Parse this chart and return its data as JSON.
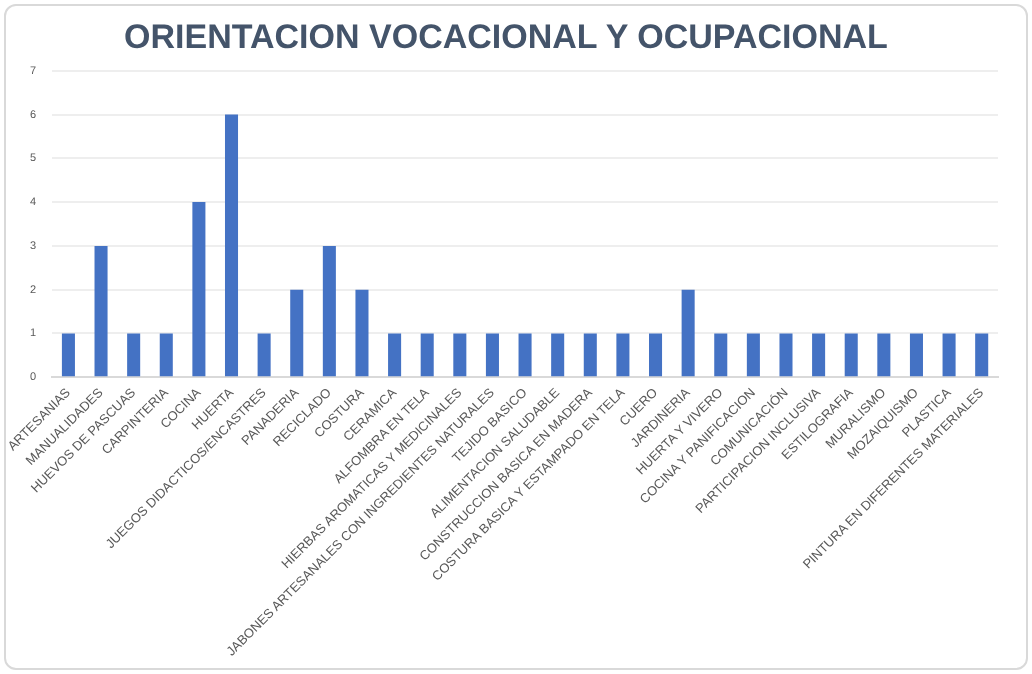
{
  "chart_data": {
    "type": "bar",
    "title": "ORIENTACION VOCACIONAL Y OCUPACIONAL",
    "categories": [
      "ARTESANIAS",
      "MANUALIDADES",
      "HUEVOS DE PASCUAS",
      "CARPINTERIA",
      "COCINA",
      "HUERTA",
      "JUEGOS DIDACTICOS/ENCASTRES",
      "PANADERIA",
      "RECICLADO",
      "COSTURA",
      "CERAMICA",
      "ALFOMBRA EN TELA",
      "HIERBAS AROMATICAS Y MEDICINALES",
      "JABONES ARTESANALES CON INGREDIENTES NATURALES",
      "TEJIDO BASICO",
      "ALIMENTACION SALUDABLE",
      "CONSTRUCCION BASICA EN MADERA",
      "COSTURA BASICA Y ESTAMPADO EN TELA",
      "CUERO",
      "JARDINERIA",
      "HUERTA Y VIVERO",
      "COCINA Y PANIFICACION",
      "COMUNICACIÓN",
      "PARTICIPACION INCLUSIVA",
      "ESTILOGRAFIA",
      "MURALISMO",
      "MOZAIQUISMO",
      "PLASTICA",
      "PINTURA EN DIFERENTES MATERIALES"
    ],
    "values": [
      1,
      3,
      1,
      1,
      4,
      6,
      1,
      2,
      3,
      2,
      1,
      1,
      1,
      1,
      1,
      1,
      1,
      1,
      1,
      2,
      1,
      1,
      1,
      1,
      1,
      1,
      1,
      1,
      1
    ],
    "color": "#4472c4",
    "ylim": [
      0,
      7
    ],
    "yticks": [
      0,
      1,
      2,
      3,
      4,
      5,
      6,
      7
    ],
    "grid": "y"
  }
}
